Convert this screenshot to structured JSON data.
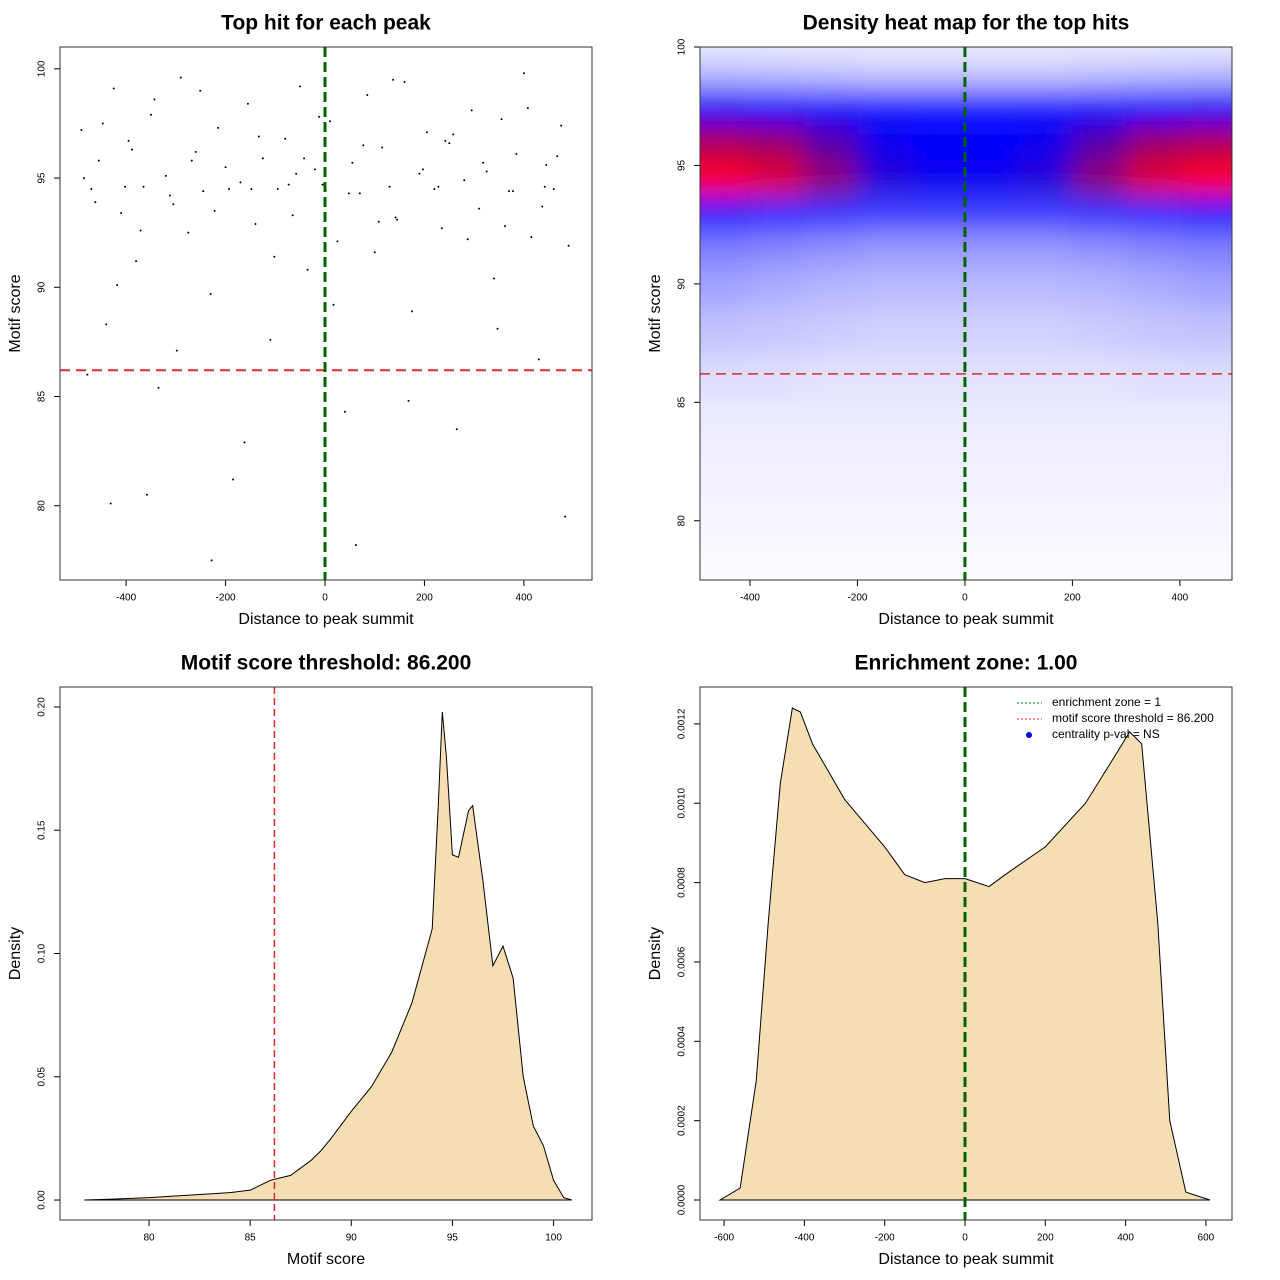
{
  "chart_data": [
    {
      "type": "scatter",
      "title": "Top hit for each peak",
      "xlabel": "Distance to peak summit",
      "ylabel": "Motif score",
      "x": [
        -490,
        -470,
        -455,
        -440,
        -425,
        -410,
        -395,
        -380,
        -365,
        -350,
        -335,
        -320,
        -305,
        -290,
        -275,
        -260,
        -245,
        -230,
        -215,
        -200,
        -185,
        -170,
        -155,
        -140,
        -125,
        -110,
        -95,
        -80,
        -65,
        -50,
        -35,
        -20,
        -5,
        10,
        25,
        40,
        55,
        70,
        85,
        100,
        115,
        130,
        145,
        160,
        175,
        190,
        205,
        220,
        235,
        250,
        265,
        280,
        295,
        310,
        325,
        340,
        355,
        370,
        385,
        400,
        415,
        430,
        445,
        460,
        475,
        490,
        -485,
        -462,
        -447,
        -431,
        -402,
        -388,
        -371,
        -343,
        -312,
        -298,
        -268,
        -251,
        -222,
        -193,
        -162,
        -133,
        -102,
        -73,
        -42,
        -12,
        17,
        48,
        77,
        108,
        137,
        168,
        197,
        228,
        258,
        287,
        318,
        347,
        378,
        408,
        437,
        467,
        483,
        -478,
        -418,
        -358,
        -228,
        -148,
        -58,
        62,
        142,
        242,
        362,
        442
      ],
      "y": [
        97.2,
        94.5,
        95.8,
        88.3,
        99.1,
        93.4,
        96.7,
        91.2,
        94.6,
        97.9,
        85.4,
        95.1,
        93.8,
        99.6,
        92.5,
        96.2,
        94.4,
        89.7,
        97.3,
        95.5,
        81.2,
        94.8,
        98.4,
        92.9,
        95.9,
        87.6,
        94.5,
        96.8,
        93.3,
        99.2,
        90.8,
        95.4,
        94.7,
        97.6,
        92.1,
        84.3,
        95.7,
        94.3,
        98.8,
        91.6,
        96.4,
        94.6,
        93.1,
        99.4,
        88.9,
        95.2,
        97.1,
        94.5,
        92.7,
        96.6,
        83.5,
        94.9,
        98.1,
        93.6,
        95.3,
        90.4,
        97.7,
        94.4,
        96.1,
        99.8,
        92.3,
        86.7,
        95.6,
        94.5,
        97.4,
        91.9,
        95.0,
        93.9,
        97.5,
        80.1,
        94.6,
        96.3,
        92.6,
        98.6,
        94.2,
        87.1,
        95.8,
        99.0,
        93.5,
        94.5,
        82.9,
        96.9,
        91.4,
        94.7,
        95.9,
        97.8,
        89.2,
        94.3,
        96.5,
        93.0,
        99.5,
        84.8,
        95.4,
        94.6,
        97.0,
        92.2,
        95.7,
        88.1,
        94.4,
        98.2,
        93.7,
        96.0,
        79.5,
        86.0,
        90.1,
        80.5,
        77.5,
        94.5,
        95.2,
        78.2,
        93.2,
        96.7,
        92.8,
        94.6
      ],
      "color": "#000000",
      "xlim": [
        -533,
        537
      ],
      "ylim": [
        76.6,
        101
      ],
      "xticks": [
        -400,
        -200,
        0,
        200,
        400
      ],
      "yticks": [
        80,
        85,
        90,
        95,
        100
      ],
      "hline": {
        "value": 86.2,
        "color": "#dd2a2a"
      },
      "vline": {
        "value": 0,
        "color": "#006400"
      }
    },
    {
      "type": "heatmap",
      "title": "Density heat map for the top hits",
      "xlabel": "Distance to peak summit",
      "ylabel": "Motif score",
      "x_centers": [
        -450,
        -350,
        -250,
        -150,
        -50,
        50,
        150,
        250,
        350,
        450
      ],
      "y_centers": [
        78,
        80,
        82,
        84,
        86,
        88,
        90,
        91.5,
        93,
        94.5,
        96,
        97.5,
        99,
        100
      ],
      "z": [
        [
          0.01,
          0.01,
          0.01,
          0.01,
          0.01,
          0.01,
          0.01,
          0.01,
          0.01,
          0.01
        ],
        [
          0.02,
          0.02,
          0.02,
          0.02,
          0.02,
          0.02,
          0.02,
          0.02,
          0.02,
          0.02
        ],
        [
          0.03,
          0.03,
          0.03,
          0.03,
          0.03,
          0.03,
          0.03,
          0.03,
          0.03,
          0.03
        ],
        [
          0.04,
          0.04,
          0.04,
          0.04,
          0.04,
          0.04,
          0.04,
          0.04,
          0.04,
          0.04
        ],
        [
          0.07,
          0.07,
          0.06,
          0.06,
          0.06,
          0.06,
          0.06,
          0.06,
          0.07,
          0.07
        ],
        [
          0.13,
          0.12,
          0.11,
          0.1,
          0.1,
          0.1,
          0.1,
          0.11,
          0.12,
          0.13
        ],
        [
          0.2,
          0.18,
          0.16,
          0.15,
          0.15,
          0.15,
          0.15,
          0.16,
          0.18,
          0.2
        ],
        [
          0.28,
          0.26,
          0.24,
          0.22,
          0.22,
          0.22,
          0.22,
          0.24,
          0.26,
          0.28
        ],
        [
          0.5,
          0.47,
          0.44,
          0.42,
          0.42,
          0.42,
          0.42,
          0.44,
          0.47,
          0.5
        ],
        [
          1.0,
          0.95,
          0.8,
          0.62,
          0.58,
          0.58,
          0.62,
          0.8,
          0.95,
          1.0
        ],
        [
          0.85,
          0.82,
          0.7,
          0.58,
          0.55,
          0.55,
          0.58,
          0.7,
          0.82,
          0.85
        ],
        [
          0.56,
          0.55,
          0.52,
          0.5,
          0.5,
          0.5,
          0.5,
          0.52,
          0.55,
          0.56
        ],
        [
          0.15,
          0.14,
          0.13,
          0.12,
          0.12,
          0.12,
          0.12,
          0.13,
          0.14,
          0.15
        ],
        [
          0.04,
          0.04,
          0.04,
          0.04,
          0.04,
          0.04,
          0.04,
          0.04,
          0.04,
          0.04
        ]
      ],
      "colormap": [
        "#ffffff",
        "#0000ff",
        "#ff0000"
      ],
      "xlim": [
        -493,
        497
      ],
      "ylim": [
        77.5,
        100
      ],
      "xticks": [
        -400,
        -200,
        0,
        200,
        400
      ],
      "yticks": [
        80,
        85,
        90,
        95,
        100
      ],
      "hline": {
        "value": 86.2,
        "color": "#dd2a2a"
      },
      "vline": {
        "value": 0,
        "color": "#006400"
      }
    },
    {
      "type": "area",
      "title": "Motif score threshold: 86.200",
      "xlabel": "Motif score",
      "ylabel": "Density",
      "x": [
        76.8,
        78,
        80,
        82,
        84,
        85,
        86,
        87,
        88,
        88.5,
        89,
        90,
        91,
        92,
        93,
        94,
        94.3,
        94.5,
        94.7,
        95,
        95.3,
        95.8,
        96,
        96.5,
        97,
        97.5,
        98,
        98.5,
        99,
        99.5,
        100,
        100.5,
        100.9
      ],
      "values": [
        0,
        0.0003,
        0.001,
        0.002,
        0.003,
        0.004,
        0.008,
        0.01,
        0.016,
        0.02,
        0.025,
        0.036,
        0.046,
        0.06,
        0.08,
        0.11,
        0.16,
        0.198,
        0.18,
        0.14,
        0.139,
        0.158,
        0.16,
        0.13,
        0.095,
        0.103,
        0.09,
        0.05,
        0.03,
        0.022,
        0.008,
        0.001,
        0
      ],
      "color": "#f5deb3",
      "xlim": [
        75.6,
        101.9
      ],
      "ylim": [
        -0.0081,
        0.2081
      ],
      "xticks": [
        80,
        85,
        90,
        95,
        100
      ],
      "yticks": [
        {
          "value": 0,
          "label": "0.00"
        },
        {
          "value": 0.05,
          "label": "0.05"
        },
        {
          "value": 0.1,
          "label": "0.10"
        },
        {
          "value": 0.15,
          "label": "0.15"
        },
        {
          "value": 0.2,
          "label": "0.20"
        }
      ],
      "vline": {
        "value": 86.2,
        "color": "#dd2a2a"
      }
    },
    {
      "type": "area",
      "title": "Enrichment zone: 1.00",
      "xlabel": "Distance to peak summit",
      "ylabel": "Density",
      "x": [
        -610,
        -560,
        -520,
        -490,
        -460,
        -430,
        -410,
        -380,
        -300,
        -200,
        -150,
        -100,
        -50,
        0,
        30,
        60,
        100,
        200,
        300,
        380,
        410,
        440,
        480,
        510,
        550,
        610
      ],
      "values": [
        0,
        3e-05,
        0.0003,
        0.0007,
        0.00105,
        0.00124,
        0.00123,
        0.00115,
        0.00101,
        0.00089,
        0.00082,
        0.0008,
        0.00081,
        0.00081,
        0.0008,
        0.00079,
        0.00082,
        0.00089,
        0.001,
        0.00113,
        0.00118,
        0.00115,
        0.0007,
        0.0002,
        2e-05,
        0
      ],
      "color": "#f5deb3",
      "xlim": [
        -660,
        665
      ],
      "ylim": [
        -5.04e-05,
        0.001293
      ],
      "xticks": [
        -600,
        -400,
        -200,
        0,
        200,
        400,
        600
      ],
      "yticks": [
        {
          "value": 0,
          "label": "0.0000"
        },
        {
          "value": 0.0002,
          "label": "0.0002"
        },
        {
          "value": 0.0004,
          "label": "0.0004"
        },
        {
          "value": 0.0006,
          "label": "0.0006"
        },
        {
          "value": 0.0008,
          "label": "0.0008"
        },
        {
          "value": 0.001,
          "label": "0.0010"
        },
        {
          "value": 0.0012,
          "label": "0.0012"
        }
      ],
      "vline": {
        "value": 0,
        "color": "#006400"
      },
      "legend": [
        {
          "label": "enrichment zone = 1",
          "color": "#008000",
          "kind": "line"
        },
        {
          "label": "motif score threshold = 86.200",
          "color": "#dd2a2a",
          "kind": "line"
        },
        {
          "label": "centrality p-val = NS",
          "color": "#0000ff",
          "kind": "point"
        }
      ]
    }
  ]
}
